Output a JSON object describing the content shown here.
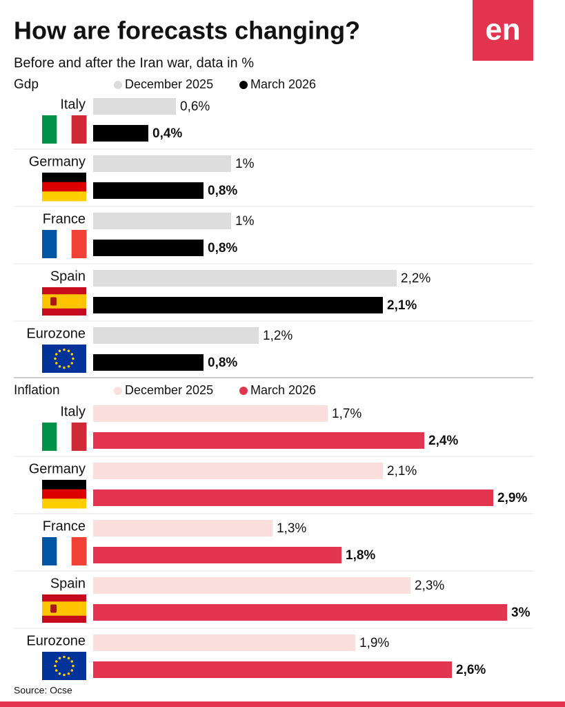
{
  "title": "How are forecasts changing?",
  "subtitle": "Before and after the Iran war, data in %",
  "logo": "en",
  "source": "Source: Ocse",
  "chart_data": [
    {
      "type": "bar",
      "orientation": "horizontal",
      "title": "Gdp",
      "categories": [
        "Italy",
        "Germany",
        "France",
        "Spain",
        "Eurozone"
      ],
      "series": [
        {
          "name": "December 2025",
          "color": "#dcdcdc",
          "values": [
            0.6,
            1,
            1,
            2.2,
            1.2
          ],
          "value_labels": [
            "0,6%",
            "1%",
            "1%",
            "2,2%",
            "1,2%"
          ]
        },
        {
          "name": "March 2026",
          "color": "#000000",
          "values": [
            0.4,
            0.8,
            0.8,
            2.1,
            0.8
          ],
          "value_labels": [
            "0,4%",
            "0,8%",
            "0,8%",
            "2,1%",
            "0,8%"
          ]
        }
      ]
    },
    {
      "type": "bar",
      "orientation": "horizontal",
      "title": "Inflation",
      "categories": [
        "Italy",
        "Germany",
        "France",
        "Spain",
        "Eurozone"
      ],
      "series": [
        {
          "name": "December 2025",
          "color": "#fbdfdd",
          "values": [
            1.7,
            2.1,
            1.3,
            2.3,
            1.9
          ],
          "value_labels": [
            "1,7%",
            "2,1%",
            "1,3%",
            "2,3%",
            "1,9%"
          ]
        },
        {
          "name": "March 2026",
          "color": "#e2334f",
          "values": [
            2.4,
            2.9,
            1.8,
            3,
            2.6
          ],
          "value_labels": [
            "2,4%",
            "2,9%",
            "1,8%",
            "3%",
            "2,6%"
          ]
        }
      ]
    }
  ]
}
